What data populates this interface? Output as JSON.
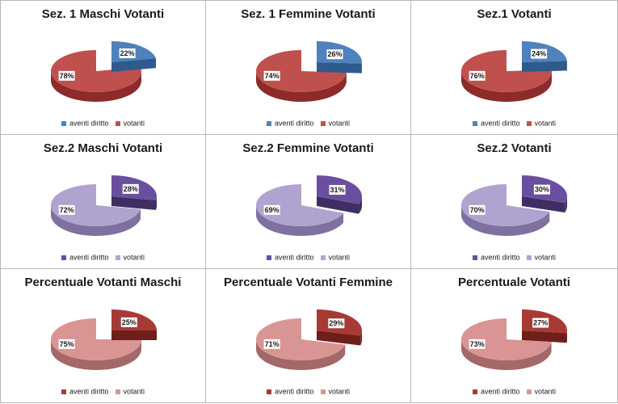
{
  "legend_labels": [
    "aventi diritto",
    "votanti"
  ],
  "themes": {
    "blue": {
      "small_top": "#4f81bd",
      "small_side": "#2f5a8c",
      "big_top": "#c0504d",
      "big_side": "#8c2b29"
    },
    "purple": {
      "small_top": "#6a4fa0",
      "small_side": "#3f2d63",
      "big_top": "#b1a3cf",
      "big_side": "#7f719f"
    },
    "rose": {
      "small_top": "#a83a36",
      "small_side": "#6e1f1c",
      "big_top": "#d99594",
      "big_side": "#a36867"
    }
  },
  "chart_data": [
    {
      "type": "pie",
      "title": "Sez. 1 Maschi Votanti",
      "theme": "blue",
      "categories": [
        "aventi diritto",
        "votanti"
      ],
      "values": [
        22,
        78
      ],
      "labels": [
        "22%",
        "78%"
      ]
    },
    {
      "type": "pie",
      "title": "Sez. 1  Femmine Votanti",
      "theme": "blue",
      "categories": [
        "aventi diritto",
        "votanti"
      ],
      "values": [
        26,
        74
      ],
      "labels": [
        "26%",
        "74%"
      ]
    },
    {
      "type": "pie",
      "title": "Sez.1  Votanti",
      "theme": "blue",
      "categories": [
        "aventi diritto",
        "votanti"
      ],
      "values": [
        24,
        76
      ],
      "labels": [
        "24%",
        "76%"
      ]
    },
    {
      "type": "pie",
      "title": "Sez.2  Maschi Votanti",
      "theme": "purple",
      "categories": [
        "aventi diritto",
        "votanti"
      ],
      "values": [
        28,
        72
      ],
      "labels": [
        "28%",
        "72%"
      ]
    },
    {
      "type": "pie",
      "title": "Sez.2 Femmine Votanti",
      "theme": "purple",
      "categories": [
        "aventi diritto",
        "votanti"
      ],
      "values": [
        31,
        69
      ],
      "labels": [
        "31%",
        "69%"
      ]
    },
    {
      "type": "pie",
      "title": "Sez.2  Votanti",
      "theme": "purple",
      "categories": [
        "aventi diritto",
        "votanti"
      ],
      "values": [
        30,
        70
      ],
      "labels": [
        "30%",
        "70%"
      ]
    },
    {
      "type": "pie",
      "title": "Percentuale  Votanti Maschi",
      "theme": "rose",
      "categories": [
        "aventi diritto",
        "votanti"
      ],
      "values": [
        25,
        75
      ],
      "labels": [
        "25%",
        "75%"
      ]
    },
    {
      "type": "pie",
      "title": "Percentuale Votanti Femmine",
      "theme": "rose",
      "categories": [
        "aventi diritto",
        "votanti"
      ],
      "values": [
        29,
        71
      ],
      "labels": [
        "29%",
        "71%"
      ]
    },
    {
      "type": "pie",
      "title": "Percentuale Votanti",
      "theme": "rose",
      "categories": [
        "aventi diritto",
        "votanti"
      ],
      "values": [
        27,
        73
      ],
      "labels": [
        "27%",
        "73%"
      ]
    }
  ]
}
